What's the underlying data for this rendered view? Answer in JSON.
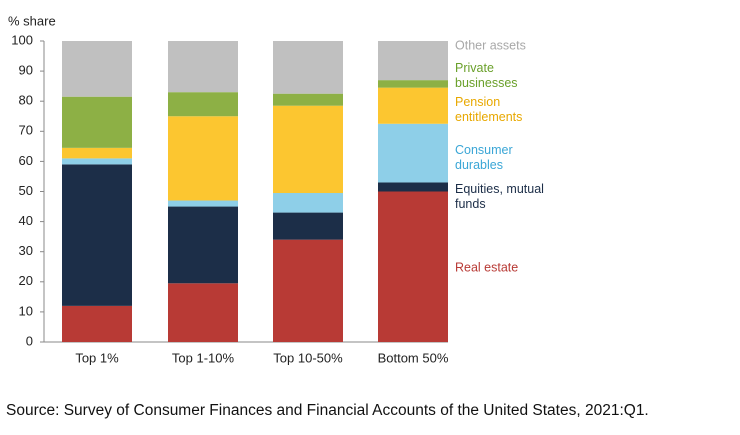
{
  "chart_data": {
    "type": "stacked-bar",
    "ylabel": "% share",
    "categories": [
      "Top 1%",
      "Top 1-10%",
      "Top 10-50%",
      "Bottom 50%"
    ],
    "series": [
      {
        "name": "Real estate",
        "color": "#b83a35",
        "values": [
          12,
          19.5,
          34,
          50
        ]
      },
      {
        "name": "Equities, mutual funds",
        "color": "#1c2e48",
        "values": [
          47,
          25.5,
          9,
          3
        ]
      },
      {
        "name": "Consumer durables",
        "color": "#8ecfe8",
        "values": [
          2,
          2,
          6.5,
          19.5
        ]
      },
      {
        "name": "Pension entitlements",
        "color": "#fcc630",
        "values": [
          3.5,
          28,
          29,
          12
        ]
      },
      {
        "name": "Private businesses",
        "color": "#8db045",
        "values": [
          17,
          8,
          4,
          2.5
        ]
      },
      {
        "name": "Other assets",
        "color": "#c0c0c0",
        "values": [
          18.5,
          17,
          17.5,
          13
        ]
      }
    ],
    "ylim": [
      0,
      100
    ],
    "yticks": [
      0,
      10,
      20,
      30,
      40,
      50,
      60,
      70,
      80,
      90,
      100
    ]
  },
  "source": "Source: Survey of Consumer Finances and Financial Accounts of the United States, 2021:Q1."
}
